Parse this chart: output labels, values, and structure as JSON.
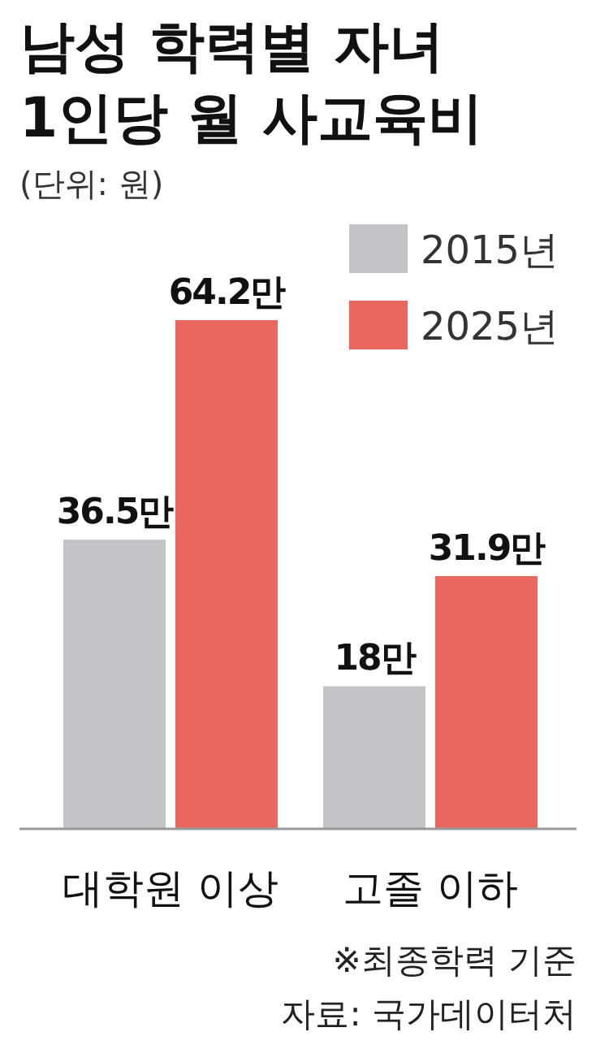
{
  "chart_data": {
    "type": "bar",
    "title": "남성 학력별 자녀 1인당 월 사교육비",
    "subtitle": "(단위: 원)",
    "categories": [
      "대학원 이상",
      "고졸 이하"
    ],
    "series": [
      {
        "name": "2015년",
        "color": "#c4c4c6",
        "values": [
          36.5,
          18
        ],
        "value_labels": [
          "36.5만",
          "18만"
        ]
      },
      {
        "name": "2025년",
        "color": "#e8685f",
        "values": [
          64.2,
          31.9
        ],
        "value_labels": [
          "64.2만",
          "31.9만"
        ]
      }
    ],
    "legend": "top right",
    "annotations": [
      "※최종학력 기준",
      "자료: 국가데이터처"
    ]
  }
}
